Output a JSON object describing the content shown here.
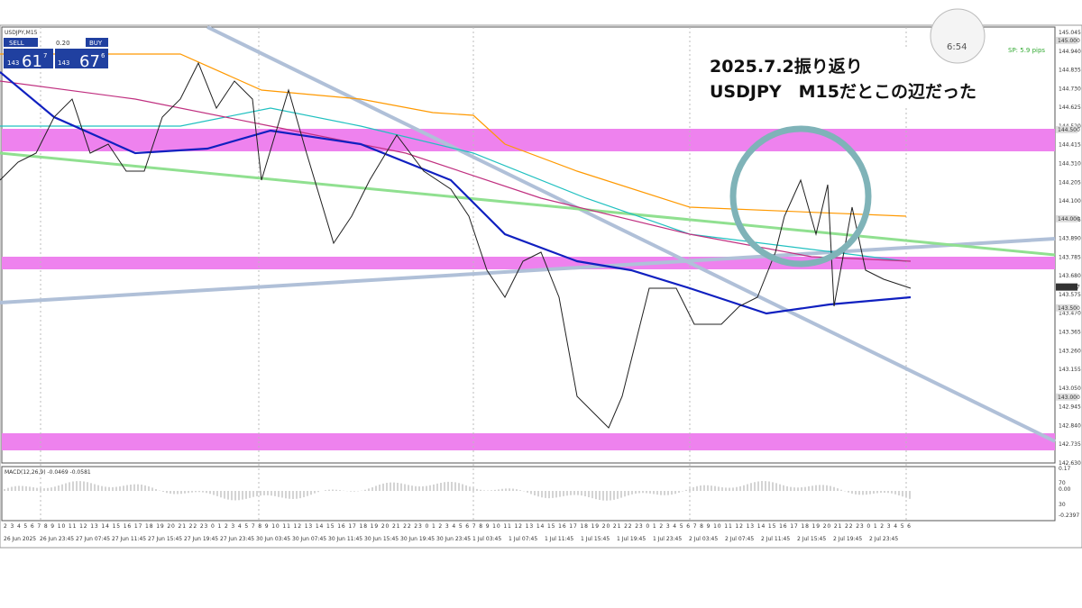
{
  "window": {
    "symbol": "USDJPY,M15",
    "sell_label": "SELL",
    "lot": "0.20",
    "buy_label": "BUY",
    "sell_price": [
      "143",
      "61",
      "7"
    ],
    "buy_price": [
      "143",
      "67",
      "6"
    ],
    "spread": "SP: 5.9 pips",
    "clock": "6:54"
  },
  "annotation": {
    "line1": "2025.7.2振り返り",
    "line2": "USDJPY　M15だとこの辺だった"
  },
  "price_axis": [
    "145.045",
    "144.940",
    "144.835",
    "144.730",
    "144.625",
    "144.520",
    "144.415",
    "144.310",
    "144.205",
    "144.100",
    "143.995",
    "143.890",
    "143.785",
    "143.680",
    "143.575",
    "143.470",
    "143.365",
    "143.260",
    "143.155",
    "143.050",
    "142.945",
    "142.840",
    "142.735",
    "142.630"
  ],
  "price_badges": [
    "145.000",
    "144.500",
    "144.000",
    "143.617",
    "143.500",
    "143.000"
  ],
  "macd": {
    "label": "MACD(12,26,9) -0.0469 -0.0581",
    "axis": [
      "0.17",
      "70",
      "0.00",
      "30",
      "-0.2397"
    ]
  },
  "time_axis": {
    "hours": "2 3 4 5 6 7 8 9 10 11 12 13 14 15 16 17 18 19 20 21 22 23 0 1 2 3 4 5 7 8 9 10 11 12 13 14 15 16 17 18 19 20 21 22 23 0 1 2 3 4 5 6 7 8 9 10 11 12 13 14 15 16 17 18 19 20 21 22 23 0 1 2 3 4 5 6 7 8 9 10 11 12 13 14 15 16 17 18 19 20 21 22 23 0 1 2 3 4 5 6",
    "dates": [
      "26 Jun 2025",
      "26 Jun 23:45",
      "27 Jun 07:45",
      "27 Jun 11:45",
      "27 Jun 15:45",
      "27 Jun 19:45",
      "27 Jun 23:45",
      "30 Jun 03:45",
      "30 Jun 07:45",
      "30 Jun 11:45",
      "30 Jun 15:45",
      "30 Jun 19:45",
      "30 Jun 23:45",
      "1 Jul 03:45",
      "1 Jul 07:45",
      "1 Jul 11:45",
      "1 Jul 15:45",
      "1 Jul 19:45",
      "1 Jul 23:45",
      "2 Jul 03:45",
      "2 Jul 07:45",
      "2 Jul 11:45",
      "2 Jul 15:45",
      "2 Jul 19:45",
      "2 Jul 23:45"
    ]
  }
}
